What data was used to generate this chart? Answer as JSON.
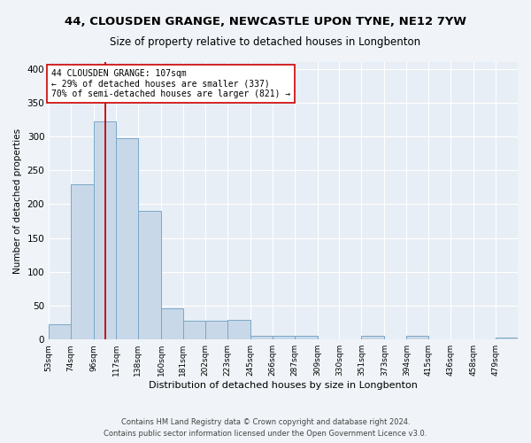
{
  "title1": "44, CLOUSDEN GRANGE, NEWCASTLE UPON TYNE, NE12 7YW",
  "title2": "Size of property relative to detached houses in Longbenton",
  "xlabel": "Distribution of detached houses by size in Longbenton",
  "ylabel": "Number of detached properties",
  "bar_color": "#c8d8e8",
  "bar_edge_color": "#7aa8c8",
  "vline_x": 107,
  "vline_color": "#cc0000",
  "categories": [
    "53sqm",
    "74sqm",
    "96sqm",
    "117sqm",
    "138sqm",
    "160sqm",
    "181sqm",
    "202sqm",
    "223sqm",
    "245sqm",
    "266sqm",
    "287sqm",
    "309sqm",
    "330sqm",
    "351sqm",
    "373sqm",
    "394sqm",
    "415sqm",
    "436sqm",
    "458sqm",
    "479sqm"
  ],
  "bin_edges": [
    53,
    74,
    96,
    117,
    138,
    160,
    181,
    202,
    223,
    245,
    266,
    287,
    309,
    330,
    351,
    373,
    394,
    415,
    436,
    458,
    479,
    500
  ],
  "values": [
    22,
    230,
    322,
    298,
    190,
    46,
    28,
    28,
    29,
    5,
    5,
    5,
    0,
    0,
    5,
    0,
    5,
    0,
    0,
    0,
    3
  ],
  "annotation_text": "44 CLOUSDEN GRANGE: 107sqm\n← 29% of detached houses are smaller (337)\n70% of semi-detached houses are larger (821) →",
  "annotation_box_color": "#ffffff",
  "annotation_box_edge": "#cc0000",
  "ylim": [
    0,
    410
  ],
  "yticks": [
    0,
    50,
    100,
    150,
    200,
    250,
    300,
    350,
    400
  ],
  "footer1": "Contains HM Land Registry data © Crown copyright and database right 2024.",
  "footer2": "Contains public sector information licensed under the Open Government Licence v3.0.",
  "background_color": "#f0f4f8",
  "plot_bg_color": "#e8eef5",
  "grid_color": "#ffffff",
  "title1_fontsize": 9.5,
  "title2_fontsize": 8.5,
  "ylabel_fontsize": 7.5,
  "xlabel_fontsize": 8,
  "ytick_fontsize": 7.5,
  "xtick_fontsize": 6.5,
  "footer_fontsize": 6,
  "annotation_fontsize": 7
}
